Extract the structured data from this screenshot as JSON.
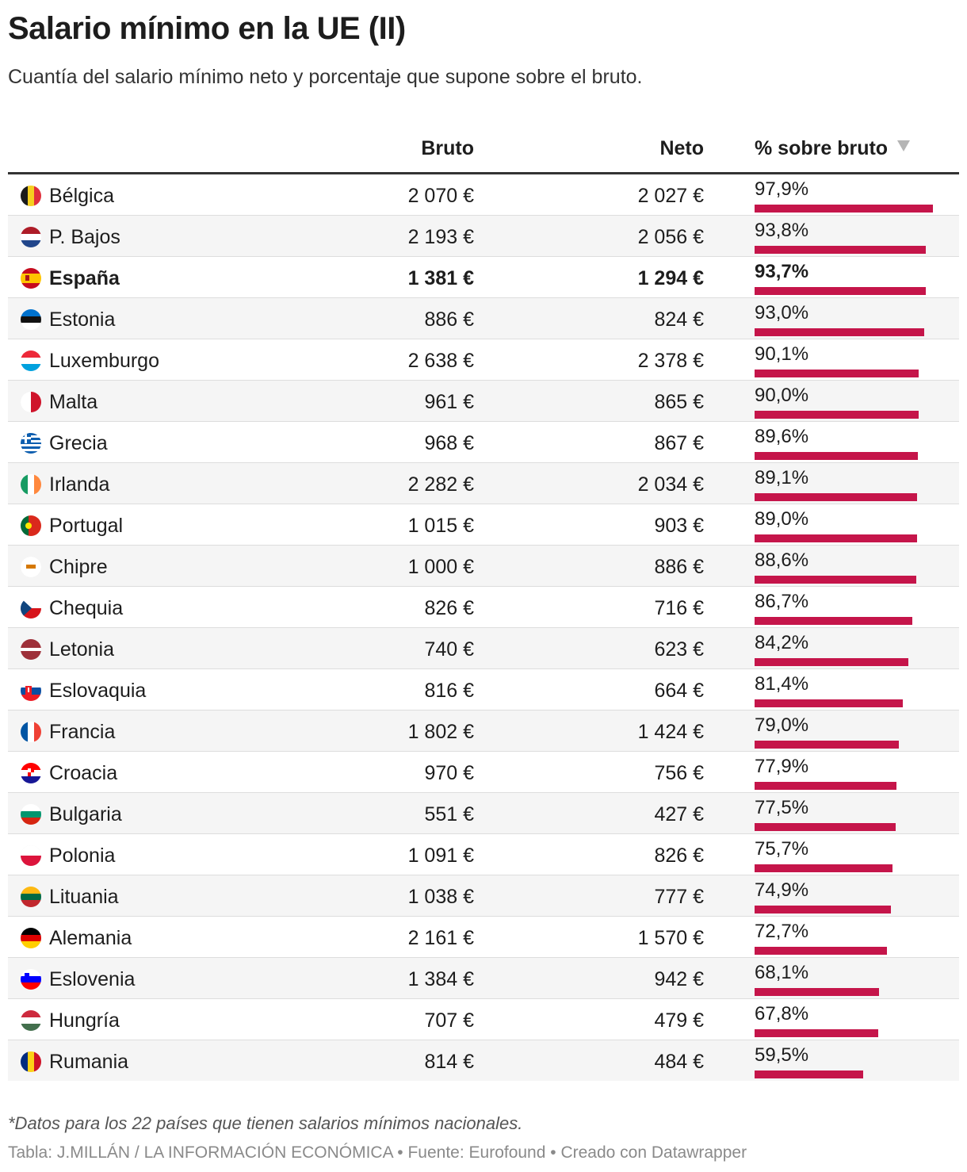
{
  "title": "Salario mínimo en la UE (II)",
  "subtitle": "Cuantía del salario mínimo neto y porcentaje que supone sobre el bruto.",
  "note": "*Datos para los 22 países que tienen salarios mínimos nacionales.",
  "footer": "Tabla: J.MILLÁN / LA INFORMACIÓN ECONÓMICA • Fuente: Eurofound • Creado con Datawrapper",
  "colors": {
    "bar": "#c5154a",
    "header_rule": "#333333",
    "row_alt": "#f5f5f5",
    "sort_icon": "#b5b5b5"
  },
  "chart_data": {
    "type": "table",
    "columns": [
      "",
      "Bruto",
      "Neto",
      "% sobre bruto"
    ],
    "sort_column": "% sobre bruto",
    "sort_order": "descending",
    "sort_icon": "triangle-down-icon",
    "highlight_row": "España",
    "bar_column": "% sobre bruto",
    "bar_scale": [
      0,
      100
    ],
    "rows": [
      {
        "country": "Bélgica",
        "flag": "BE",
        "bruto": "2 070 €",
        "neto": "2 027 €",
        "pct_label": "97,9%",
        "pct": 97.9
      },
      {
        "country": "P. Bajos",
        "flag": "NL",
        "bruto": "2 193 €",
        "neto": "2 056 €",
        "pct_label": "93,8%",
        "pct": 93.8
      },
      {
        "country": "España",
        "flag": "ES",
        "bruto": "1 381 €",
        "neto": "1 294 €",
        "pct_label": "93,7%",
        "pct": 93.7
      },
      {
        "country": "Estonia",
        "flag": "EE",
        "bruto": "886 €",
        "neto": "824 €",
        "pct_label": "93,0%",
        "pct": 93.0
      },
      {
        "country": "Luxemburgo",
        "flag": "LU",
        "bruto": "2 638 €",
        "neto": "2 378 €",
        "pct_label": "90,1%",
        "pct": 90.1
      },
      {
        "country": "Malta",
        "flag": "MT",
        "bruto": "961 €",
        "neto": "865 €",
        "pct_label": "90,0%",
        "pct": 90.0
      },
      {
        "country": "Grecia",
        "flag": "GR",
        "bruto": "968 €",
        "neto": "867 €",
        "pct_label": "89,6%",
        "pct": 89.6
      },
      {
        "country": "Irlanda",
        "flag": "IE",
        "bruto": "2 282 €",
        "neto": "2 034 €",
        "pct_label": "89,1%",
        "pct": 89.1
      },
      {
        "country": "Portugal",
        "flag": "PT",
        "bruto": "1 015 €",
        "neto": "903 €",
        "pct_label": "89,0%",
        "pct": 89.0
      },
      {
        "country": "Chipre",
        "flag": "CY",
        "bruto": "1 000 €",
        "neto": "886 €",
        "pct_label": "88,6%",
        "pct": 88.6
      },
      {
        "country": "Chequia",
        "flag": "CZ",
        "bruto": "826 €",
        "neto": "716 €",
        "pct_label": "86,7%",
        "pct": 86.7
      },
      {
        "country": "Letonia",
        "flag": "LV",
        "bruto": "740 €",
        "neto": "623 €",
        "pct_label": "84,2%",
        "pct": 84.2
      },
      {
        "country": "Eslovaquia",
        "flag": "SK",
        "bruto": "816 €",
        "neto": "664 €",
        "pct_label": "81,4%",
        "pct": 81.4
      },
      {
        "country": "Francia",
        "flag": "FR",
        "bruto": "1 802 €",
        "neto": "1 424 €",
        "pct_label": "79,0%",
        "pct": 79.0
      },
      {
        "country": "Croacia",
        "flag": "HR",
        "bruto": "970 €",
        "neto": "756 €",
        "pct_label": "77,9%",
        "pct": 77.9
      },
      {
        "country": "Bulgaria",
        "flag": "BG",
        "bruto": "551 €",
        "neto": "427 €",
        "pct_label": "77,5%",
        "pct": 77.5
      },
      {
        "country": "Polonia",
        "flag": "PL",
        "bruto": "1 091 €",
        "neto": "826 €",
        "pct_label": "75,7%",
        "pct": 75.7
      },
      {
        "country": "Lituania",
        "flag": "LT",
        "bruto": "1 038 €",
        "neto": "777 €",
        "pct_label": "74,9%",
        "pct": 74.9
      },
      {
        "country": "Alemania",
        "flag": "DE",
        "bruto": "2 161 €",
        "neto": "1 570 €",
        "pct_label": "72,7%",
        "pct": 72.7
      },
      {
        "country": "Eslovenia",
        "flag": "SI",
        "bruto": "1 384 €",
        "neto": "942 €",
        "pct_label": "68,1%",
        "pct": 68.1
      },
      {
        "country": "Hungría",
        "flag": "HU",
        "bruto": "707 €",
        "neto": "479 €",
        "pct_label": "67,8%",
        "pct": 67.8
      },
      {
        "country": "Rumania",
        "flag": "RO",
        "bruto": "814 €",
        "neto": "484 €",
        "pct_label": "59,5%",
        "pct": 59.5
      }
    ]
  }
}
